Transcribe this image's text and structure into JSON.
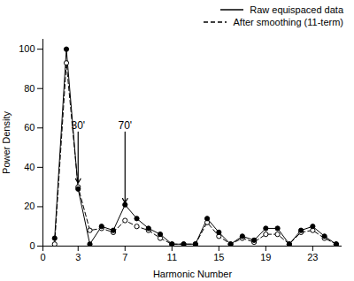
{
  "chart_data": {
    "type": "line",
    "xlabel": "Harmonic Number",
    "ylabel": "Power Density",
    "x": [
      1,
      2,
      3,
      4,
      5,
      6,
      7,
      8,
      9,
      10,
      11,
      12,
      13,
      14,
      15,
      16,
      17,
      18,
      19,
      20,
      21,
      22,
      23,
      24,
      25
    ],
    "series": [
      {
        "name": "Raw equispaced data",
        "color": "#000000",
        "line_style": "solid",
        "marker": "circle",
        "values": [
          4,
          100,
          29,
          1,
          10,
          8,
          21,
          14,
          9,
          6,
          1,
          1,
          1,
          14,
          7,
          1,
          5,
          3,
          9,
          9,
          1,
          8,
          10,
          5,
          1
        ]
      },
      {
        "name": "After smoothing (11-term)",
        "color": "#000000",
        "line_style": "dashed",
        "marker": "circle-open",
        "values": [
          1,
          93,
          30,
          8,
          9,
          7,
          13,
          10,
          8,
          4,
          1,
          1,
          1,
          12,
          5,
          1,
          4,
          2,
          6,
          6,
          1,
          7,
          8,
          4,
          1
        ]
      }
    ],
    "xlim": [
      0,
      25.5
    ],
    "ylim": [
      0,
      105
    ],
    "xticks": [
      0,
      3,
      7,
      11,
      15,
      19,
      23
    ],
    "yticks": [
      0,
      20,
      40,
      60,
      80,
      100
    ],
    "annotations": [
      {
        "text": "30'",
        "x": 3,
        "y": 32,
        "text_x": 3,
        "text_y": 58
      },
      {
        "text": "70'",
        "x": 7,
        "y": 22,
        "text_x": 7,
        "text_y": 58
      }
    ],
    "legend": "upper right"
  }
}
